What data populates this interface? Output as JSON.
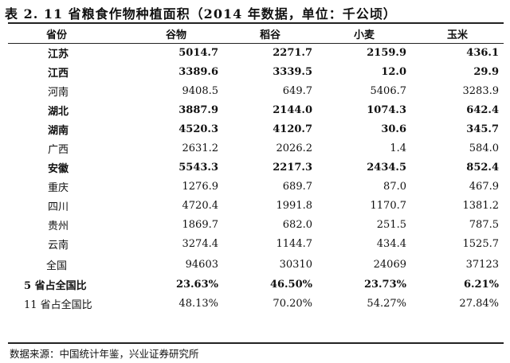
{
  "title": "表 2. 11 省粮食作物种植面积（2014 年数据，单位：千公顷）",
  "headers": [
    "省份",
    "谷物",
    "稻谷",
    "小麦",
    "玉米"
  ],
  "rows": [
    {
      "name": "江苏",
      "values": [
        "5014.7",
        "2271.7",
        "2159.9",
        "436.1"
      ],
      "bold": true
    },
    {
      "name": "江西",
      "values": [
        "3389.6",
        "3339.5",
        "12.0",
        "29.9"
      ],
      "bold": true
    },
    {
      "name": "河南",
      "values": [
        "9408.5",
        "649.7",
        "5406.7",
        "3283.9"
      ],
      "bold": false
    },
    {
      "name": "湖北",
      "values": [
        "3887.9",
        "2144.0",
        "1074.3",
        "642.4"
      ],
      "bold": true
    },
    {
      "name": "湖南",
      "values": [
        "4520.3",
        "4120.7",
        "30.6",
        "345.7"
      ],
      "bold": true
    },
    {
      "name": "广西",
      "values": [
        "2631.2",
        "2026.2",
        "1.4",
        "584.0"
      ],
      "bold": false
    },
    {
      "name": "安徽",
      "values": [
        "5543.3",
        "2217.3",
        "2434.5",
        "852.4"
      ],
      "bold": true
    },
    {
      "name": "重庆",
      "values": [
        "1276.9",
        "689.7",
        "87.0",
        "467.9"
      ],
      "bold": false
    },
    {
      "name": "四川",
      "values": [
        "4720.4",
        "1991.8",
        "1170.7",
        "1381.2"
      ],
      "bold": false
    },
    {
      "name": "贵州",
      "values": [
        "1869.7",
        "682.0",
        "251.5",
        "787.5"
      ],
      "bold": false
    },
    {
      "name": "云南",
      "values": [
        "3274.4",
        "1144.7",
        "434.4",
        "1525.7"
      ],
      "bold": false
    }
  ],
  "national": {
    "name": "全国",
    "values": [
      "94603",
      "30310",
      "24069",
      "37123"
    ]
  },
  "share5": {
    "name": "5 省占全国比",
    "values": [
      "23.63%",
      "46.50%",
      "23.73%",
      "6.21%"
    ]
  },
  "share11": {
    "name": "11 省占全国比",
    "values": [
      "48.13%",
      "70.20%",
      "54.27%",
      "27.84%"
    ]
  },
  "source": "数据来源：中国统计年鉴，兴业证券研究所"
}
